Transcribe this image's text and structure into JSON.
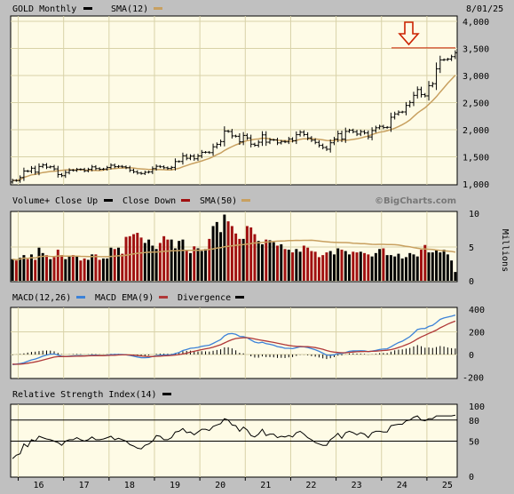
{
  "header": {
    "symbol_label": "GOLD Monthly",
    "sma_label": "SMA(12)",
    "date": "8/01/25",
    "watermark": "©BigCharts.com"
  },
  "colors": {
    "panel_bg": "#fefbe6",
    "grid": "#d8d2a8",
    "sma": "#c8a060",
    "up": "#000000",
    "down": "#a01010",
    "macd": "#3c82d8",
    "macd_ema": "#b03838",
    "arrow": "#cc2200"
  },
  "chart_data": [
    {
      "type": "candlestick",
      "title": "GOLD Monthly",
      "legend": [
        "GOLD Monthly",
        "SMA(12)"
      ],
      "ylim": [
        1000,
        3700
      ],
      "y_ticks": [
        "1,000",
        "1,500",
        "2,000",
        "2,500",
        "3,000",
        "3,500",
        "4,000"
      ],
      "x_ticks": [
        "16",
        "17",
        "18",
        "19",
        "20",
        "21",
        "22",
        "23",
        "24",
        "25"
      ],
      "price_line": 3510,
      "months": [
        "2015-11",
        "2015-12",
        "2016-01",
        "2016-02",
        "2016-03",
        "2016-04",
        "2016-05",
        "2016-06",
        "2016-07",
        "2016-08",
        "2016-09",
        "2016-10",
        "2016-11",
        "2016-12",
        "2017-01",
        "2017-02",
        "2017-03",
        "2017-04",
        "2017-05",
        "2017-06",
        "2017-07",
        "2017-08",
        "2017-09",
        "2017-10",
        "2017-11",
        "2017-12",
        "2018-01",
        "2018-02",
        "2018-03",
        "2018-04",
        "2018-05",
        "2018-06",
        "2018-07",
        "2018-08",
        "2018-09",
        "2018-10",
        "2018-11",
        "2018-12",
        "2019-01",
        "2019-02",
        "2019-03",
        "2019-04",
        "2019-05",
        "2019-06",
        "2019-07",
        "2019-08",
        "2019-09",
        "2019-10",
        "2019-11",
        "2019-12",
        "2020-01",
        "2020-02",
        "2020-03",
        "2020-04",
        "2020-05",
        "2020-06",
        "2020-07",
        "2020-08",
        "2020-09",
        "2020-10",
        "2020-11",
        "2020-12",
        "2021-01",
        "2021-02",
        "2021-03",
        "2021-04",
        "2021-05",
        "2021-06",
        "2021-07",
        "2021-08",
        "2021-09",
        "2021-10",
        "2021-11",
        "2021-12",
        "2022-01",
        "2022-02",
        "2022-03",
        "2022-04",
        "2022-05",
        "2022-06",
        "2022-07",
        "2022-08",
        "2022-09",
        "2022-10",
        "2022-11",
        "2022-12",
        "2023-01",
        "2023-02",
        "2023-03",
        "2023-04",
        "2023-05",
        "2023-06",
        "2023-07",
        "2023-08",
        "2023-09",
        "2023-10",
        "2023-11",
        "2023-12",
        "2024-01",
        "2024-02",
        "2024-03",
        "2024-04",
        "2024-05",
        "2024-06",
        "2024-07",
        "2024-08",
        "2024-09",
        "2024-10",
        "2024-11",
        "2024-12",
        "2025-01",
        "2025-02",
        "2025-03",
        "2025-04",
        "2025-05",
        "2025-06",
        "2025-07",
        "2025-08"
      ],
      "close": [
        1065,
        1061,
        1118,
        1238,
        1234,
        1290,
        1217,
        1322,
        1350,
        1309,
        1317,
        1277,
        1173,
        1152,
        1211,
        1254,
        1249,
        1269,
        1268,
        1242,
        1269,
        1315,
        1283,
        1271,
        1275,
        1303,
        1345,
        1318,
        1325,
        1315,
        1299,
        1252,
        1224,
        1201,
        1192,
        1215,
        1222,
        1282,
        1325,
        1316,
        1298,
        1285,
        1305,
        1413,
        1414,
        1520,
        1473,
        1513,
        1464,
        1517,
        1583,
        1585,
        1577,
        1685,
        1730,
        1781,
        1975,
        1967,
        1886,
        1879,
        1777,
        1895,
        1848,
        1733,
        1713,
        1769,
        1905,
        1770,
        1813,
        1813,
        1757,
        1783,
        1775,
        1829,
        1796,
        1909,
        1954,
        1911,
        1848,
        1807,
        1766,
        1711,
        1672,
        1640,
        1759,
        1826,
        1928,
        1827,
        1969,
        1990,
        1963,
        1919,
        1965,
        1940,
        1866,
        1984,
        2036,
        2063,
        2040,
        2045,
        2230,
        2291,
        2324,
        2328,
        2448,
        2502,
        2634,
        2741,
        2648,
        2624,
        2813,
        2849,
        3124,
        3288,
        3293,
        3303,
        3348,
        3420
      ],
      "volume_label": "Volume+ Close Up ■  Close Down ■  SMA(50) ■",
      "volume_legend": [
        "Volume+",
        "Close Up",
        "Close Down",
        "SMA(50)"
      ],
      "volume_ticks": [
        "0",
        "5",
        "10"
      ],
      "volume_unit": "Millions",
      "volume_ylim": [
        0,
        10
      ],
      "volume": [
        3.2,
        3.0,
        3.4,
        3.8,
        3.2,
        3.9,
        3.1,
        4.9,
        4.1,
        3.8,
        3.2,
        3.5,
        4.6,
        3.8,
        3.2,
        3.6,
        3.8,
        3.6,
        3.0,
        3.3,
        3.1,
        3.9,
        3.9,
        3.1,
        3.3,
        3.3,
        4.9,
        4.7,
        4.9,
        4.0,
        6.5,
        6.6,
        6.9,
        7.1,
        6.4,
        5.6,
        6.1,
        5.2,
        4.7,
        5.6,
        6.6,
        6.1,
        6.1,
        4.8,
        5.9,
        6.1,
        4.5,
        4.1,
        5.1,
        4.8,
        4.4,
        4.7,
        6.2,
        8.1,
        8.7,
        7.2,
        9.8,
        8.8,
        8.1,
        7.0,
        6.2,
        6.2,
        8.1,
        7.9,
        6.9,
        5.9,
        5.4,
        6.1,
        6.0,
        5.7,
        5.2,
        5.4,
        4.7,
        4.6,
        4.2,
        4.7,
        4.3,
        5.2,
        4.9,
        4.4,
        4.3,
        3.5,
        3.8,
        4.2,
        4.4,
        3.9,
        4.8,
        4.6,
        4.4,
        3.9,
        4.3,
        4.2,
        4.3,
        4.1,
        3.9,
        3.6,
        4.1,
        4.7,
        4.8,
        3.8,
        3.8,
        3.6,
        4.0,
        3.3,
        3.5,
        4.1,
        3.9,
        3.6,
        4.6,
        5.3,
        4.2,
        4.2,
        4.6,
        4.2,
        4.6,
        3.9,
        3.0,
        1.3
      ],
      "macd_label": "MACD(12,26) ■  MACD EMA(9) ■  Divergence ■",
      "macd_legend": [
        "MACD(12,26)",
        "MACD EMA(9)",
        "Divergence"
      ],
      "macd_ticks": [
        "-200",
        "0",
        "200",
        "400"
      ],
      "macd_ylim": [
        -220,
        430
      ],
      "macd": [
        -90,
        -85,
        -80,
        -72,
        -60,
        -48,
        -40,
        -28,
        -15,
        -5,
        3,
        5,
        -5,
        -15,
        -18,
        -15,
        -12,
        -10,
        -10,
        -12,
        -10,
        -6,
        -6,
        -8,
        -9,
        -6,
        -1,
        0,
        1,
        0,
        -2,
        -8,
        -15,
        -22,
        -28,
        -28,
        -26,
        -18,
        -10,
        -6,
        -4,
        -3,
        -2,
        8,
        18,
        35,
        44,
        55,
        58,
        63,
        72,
        78,
        82,
        98,
        115,
        132,
        165,
        182,
        185,
        178,
        160,
        158,
        148,
        128,
        110,
        102,
        108,
        96,
        90,
        82,
        70,
        64,
        55,
        55,
        52,
        60,
        68,
        68,
        62,
        52,
        42,
        28,
        12,
        -5,
        -6,
        -2,
        8,
        8,
        18,
        28,
        32,
        32,
        33,
        32,
        25,
        30,
        36,
        44,
        48,
        50,
        68,
        88,
        105,
        118,
        138,
        158,
        188,
        220,
        228,
        230,
        248,
        258,
        282,
        310,
        322,
        330,
        338,
        348
      ],
      "macd_ema": [
        -85,
        -86,
        -85,
        -82,
        -77,
        -71,
        -65,
        -58,
        -49,
        -40,
        -31,
        -23,
        -19,
        -18,
        -18,
        -17,
        -16,
        -15,
        -14,
        -13,
        -12,
        -11,
        -10,
        -10,
        -10,
        -9,
        -7,
        -6,
        -4,
        -3,
        -3,
        -4,
        -6,
        -9,
        -13,
        -16,
        -18,
        -18,
        -16,
        -14,
        -12,
        -10,
        -8,
        -5,
        -1,
        5,
        12,
        21,
        28,
        36,
        43,
        50,
        56,
        65,
        75,
        86,
        102,
        118,
        131,
        141,
        145,
        148,
        148,
        144,
        137,
        130,
        125,
        119,
        113,
        107,
        100,
        93,
        86,
        80,
        75,
        72,
        71,
        70,
        69,
        66,
        61,
        54,
        46,
        35,
        27,
        21,
        18,
        16,
        16,
        19,
        22,
        24,
        26,
        27,
        27,
        28,
        30,
        32,
        35,
        38,
        43,
        51,
        62,
        73,
        86,
        100,
        117,
        137,
        155,
        170,
        186,
        200,
        216,
        235,
        252,
        268,
        282,
        295
      ],
      "rsi_label": "Relative Strength Index(14) ■",
      "rsi_legend": [
        "Relative Strength Index(14)"
      ],
      "rsi_ticks": [
        "0",
        "50",
        "80",
        "100"
      ],
      "rsi_ylim": [
        0,
        100
      ],
      "rsi_lines": [
        50,
        80
      ],
      "rsi": [
        25,
        30,
        32,
        46,
        42,
        52,
        50,
        57,
        55,
        53,
        52,
        50,
        48,
        44,
        50,
        52,
        52,
        55,
        52,
        50,
        52,
        56,
        52,
        52,
        53,
        55,
        57,
        52,
        54,
        52,
        50,
        45,
        43,
        40,
        39,
        44,
        46,
        50,
        58,
        57,
        52,
        52,
        55,
        63,
        64,
        68,
        62,
        63,
        59,
        63,
        67,
        67,
        65,
        71,
        73,
        75,
        82,
        80,
        73,
        72,
        64,
        70,
        66,
        58,
        56,
        60,
        67,
        58,
        60,
        60,
        55,
        57,
        56,
        58,
        56,
        62,
        64,
        60,
        55,
        52,
        48,
        46,
        44,
        44,
        52,
        56,
        61,
        54,
        62,
        64,
        62,
        59,
        62,
        60,
        55,
        62,
        64,
        64,
        63,
        63,
        72,
        73,
        74,
        74,
        79,
        80,
        84,
        86,
        80,
        79,
        82,
        82,
        86,
        86,
        86,
        86,
        86,
        87
      ]
    }
  ]
}
